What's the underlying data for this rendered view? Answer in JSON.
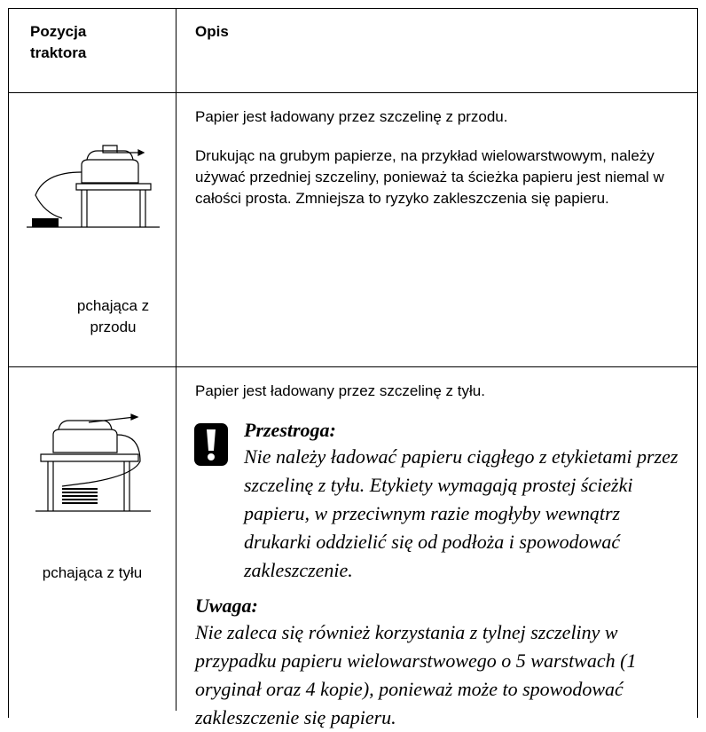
{
  "table": {
    "header": [
      "Pozycja traktora",
      "Opis"
    ],
    "rows": [
      {
        "position": "pchająca z przodu",
        "description": [
          "Papier jest ładowany przez szczelinę z przodu.",
          "Drukując na grubym papierze, na przykład wielowarstwowym, należy używać przedniej szczeliny, ponieważ ta ścieżka papieru jest niemal w całości prosta. Zmniejsza to ryzyko zakleszczenia się papieru."
        ]
      },
      {
        "position": "pchająca z tyłu",
        "description": [
          "Papier jest ładowany przez szczelinę z tyłu."
        ],
        "caution": {
          "title": "Przestroga:",
          "text": "Nie należy ładować papieru ciągłego z etykietami przez szczelinę z tyłu. Etykiety wymagają prostej ścieżki papieru, w przeciwnym razie mogłyby wewnątrz drukarki oddzielić się od podłoża i spowodować zakleszczenie."
        },
        "note": {
          "title": "Uwaga:",
          "text": "Nie zaleca się również korzystania z tylnej szczeliny w przypadku papieru wielowarstwowego o 5 warstwach (1 oryginał oraz 4 kopie), ponieważ może to spowodować zakleszczenie się papieru."
        }
      }
    ]
  }
}
